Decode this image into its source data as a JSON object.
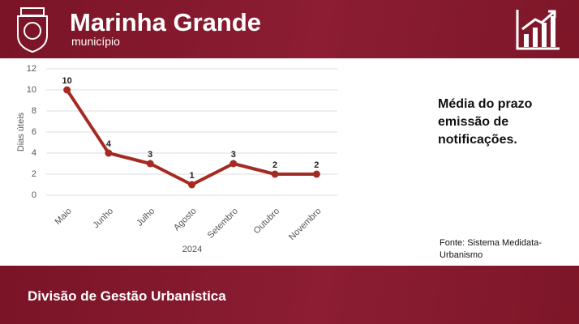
{
  "header": {
    "title": "Marinha Grande",
    "subtitle": "município"
  },
  "chart_data": {
    "type": "line",
    "x_label": "2024",
    "y_label": "Dias úteis",
    "categories": [
      "Maio",
      "Junho",
      "Julho",
      "Agosto",
      "Setembro",
      "Outubro",
      "Novembro"
    ],
    "values": [
      10,
      4,
      3,
      1,
      3,
      2,
      2
    ],
    "color": "#a52a22",
    "ylim": [
      0,
      12
    ],
    "yticks": [
      0,
      2,
      4,
      6,
      8,
      10,
      12
    ],
    "grid": true
  },
  "note": "Média do prazo emissão de notificações.",
  "source": "Fonte: Sistema Medidata-Urbanismo",
  "footer": "Divisão de Gestão Urbanística"
}
